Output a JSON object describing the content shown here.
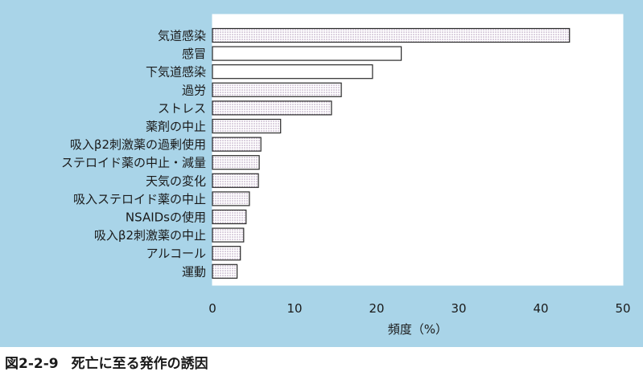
{
  "chart_data": {
    "type": "bar",
    "orientation": "horizontal",
    "categories": [
      "気道感染",
      "感冒",
      "下気道感染",
      "過労",
      "ストレス",
      "薬剤の中止",
      "吸入β2刺激薬の過剰使用",
      "ステロイド薬の中止・減量",
      "天気の変化",
      "吸入ステロイド薬の中止",
      "NSAIDsの使用",
      "吸入β2刺激薬の中止",
      "アルコール",
      "運動"
    ],
    "values": [
      43.5,
      23,
      19.5,
      15.7,
      14.5,
      8.3,
      5.9,
      5.7,
      5.6,
      4.5,
      4.1,
      3.8,
      3.4,
      3.0
    ],
    "patterned": [
      true,
      false,
      false,
      true,
      true,
      true,
      true,
      true,
      true,
      true,
      true,
      true,
      true,
      true
    ],
    "xlim": [
      0,
      50
    ],
    "xticks": [
      "0",
      "10",
      "20",
      "30",
      "40",
      "50"
    ],
    "xlabel": "頻度（%）",
    "colors": {
      "plain_bar": "#ffffff",
      "pattern_bar": "#e4dde7",
      "outline": "#2a2a2a",
      "background": "#a9d4e8"
    }
  },
  "caption": {
    "number": "図2-2-9",
    "title": "死亡に至る発作の誘因"
  }
}
